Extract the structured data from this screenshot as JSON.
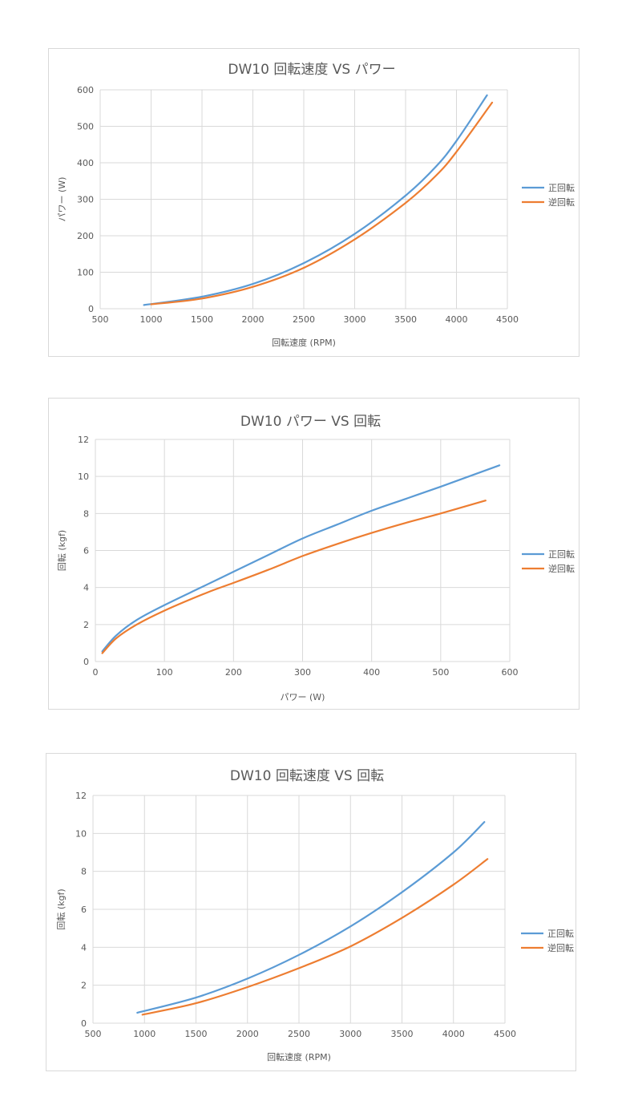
{
  "colors": {
    "forward": "#5b9bd5",
    "reverse": "#ed7d31"
  },
  "chart_data": [
    {
      "type": "line",
      "title": "DW10 回転速度 VS パワー",
      "xlabel": "回転速度 (RPM)",
      "ylabel": "パワー (W)",
      "xlim": [
        500,
        4500
      ],
      "ylim": [
        0,
        600
      ],
      "xticks": [
        "500",
        "1000",
        "1500",
        "2000",
        "2500",
        "3000",
        "3500",
        "4000",
        "4500"
      ],
      "yticks": [
        "0",
        "100",
        "200",
        "300",
        "400",
        "500",
        "600"
      ],
      "grid": true,
      "legend_position": "right",
      "series": [
        {
          "name": "正回転",
          "x": [
            930,
            1500,
            2000,
            2500,
            3000,
            3500,
            3800,
            4000,
            4300
          ],
          "y": [
            10,
            33,
            68,
            125,
            205,
            310,
            390,
            460,
            585
          ]
        },
        {
          "name": "逆回転",
          "x": [
            1000,
            1500,
            2000,
            2500,
            3000,
            3500,
            3800,
            4000,
            4350
          ],
          "y": [
            12,
            28,
            60,
            112,
            190,
            290,
            365,
            430,
            565
          ]
        }
      ]
    },
    {
      "type": "line",
      "title": "DW10 パワー VS 回転",
      "xlabel": "パワー (W)",
      "ylabel": "回転 (kgf)",
      "xlim": [
        0,
        600
      ],
      "ylim": [
        0,
        12
      ],
      "xticks": [
        "0",
        "100",
        "200",
        "300",
        "400",
        "500",
        "600"
      ],
      "yticks": [
        "0",
        "2",
        "4",
        "6",
        "8",
        "10",
        "12"
      ],
      "grid": true,
      "legend_position": "right",
      "series": [
        {
          "name": "正回転",
          "x": [
            10,
            30,
            60,
            100,
            150,
            200,
            250,
            300,
            350,
            400,
            450,
            500,
            585
          ],
          "y": [
            0.55,
            1.4,
            2.25,
            3.05,
            3.95,
            4.85,
            5.75,
            6.65,
            7.4,
            8.15,
            8.8,
            9.45,
            10.6
          ]
        },
        {
          "name": "逆回転",
          "x": [
            10,
            30,
            60,
            100,
            160,
            200,
            250,
            300,
            350,
            400,
            450,
            500,
            565
          ],
          "y": [
            0.45,
            1.25,
            2.0,
            2.75,
            3.7,
            4.25,
            4.95,
            5.7,
            6.35,
            6.95,
            7.5,
            8.0,
            8.7
          ]
        }
      ]
    },
    {
      "type": "line",
      "title": "DW10 回転速度 VS 回転",
      "xlabel": "回転速度 (RPM)",
      "ylabel": "回転 (kgf)",
      "xlim": [
        500,
        4500
      ],
      "ylim": [
        0,
        12
      ],
      "xticks": [
        "500",
        "1000",
        "1500",
        "2000",
        "2500",
        "3000",
        "3500",
        "4000",
        "4500"
      ],
      "yticks": [
        "0",
        "2",
        "4",
        "6",
        "8",
        "10",
        "12"
      ],
      "grid": true,
      "legend_position": "right",
      "series": [
        {
          "name": "正回転",
          "x": [
            930,
            1500,
            2000,
            2500,
            3000,
            3500,
            4000,
            4300
          ],
          "y": [
            0.55,
            1.35,
            2.35,
            3.6,
            5.1,
            6.9,
            9.0,
            10.6
          ]
        },
        {
          "name": "逆回転",
          "x": [
            980,
            1500,
            2000,
            2500,
            3000,
            3500,
            4000,
            4330
          ],
          "y": [
            0.45,
            1.05,
            1.9,
            2.9,
            4.05,
            5.55,
            7.3,
            8.65
          ]
        }
      ]
    }
  ]
}
